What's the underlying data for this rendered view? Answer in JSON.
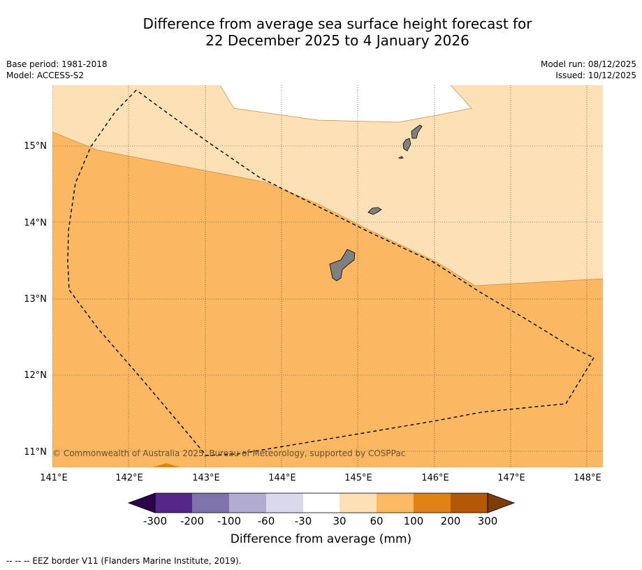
{
  "title": {
    "line1": "Difference from average sea surface height forecast for",
    "line2": "22 December 2025 to 4 January 2026"
  },
  "meta_left": {
    "base_period": "Base period: 1981-2018",
    "model": "Model: ACCESS-S2"
  },
  "meta_right": {
    "model_run": "Model run: 08/12/2025",
    "issued": "Issued: 10/12/2025"
  },
  "map": {
    "lat_labels": [
      "15°N",
      "14°N",
      "13°N",
      "12°N",
      "11°N"
    ],
    "lon_labels": [
      "141°E",
      "142°E",
      "143°E",
      "144°E",
      "145°E",
      "146°E",
      "147°E",
      "148°E"
    ],
    "copyright": "© Commonwealth of Australia 2025, Bureau of Meteorology, supported by COSPPac",
    "colors": {
      "band_30_60": "#fde0b6",
      "band_60_100": "#fbb762",
      "band_100_200": "#e08214",
      "land": "#808080"
    }
  },
  "colorbar": {
    "ticks": [
      "-300",
      "-200",
      "-100",
      "-60",
      "-30",
      "30",
      "60",
      "100",
      "200",
      "300"
    ],
    "colors": [
      "#2d004b",
      "#542788",
      "#8073ac",
      "#b2abd2",
      "#d8daeb",
      "#ffffff",
      "#fee0b6",
      "#fdb863",
      "#e08214",
      "#b35806",
      "#7f3b08"
    ],
    "label": "Difference from average (mm)"
  },
  "footnote": "--  --  -- EEZ border V11 (Flanders Marine Institute, 2019)."
}
